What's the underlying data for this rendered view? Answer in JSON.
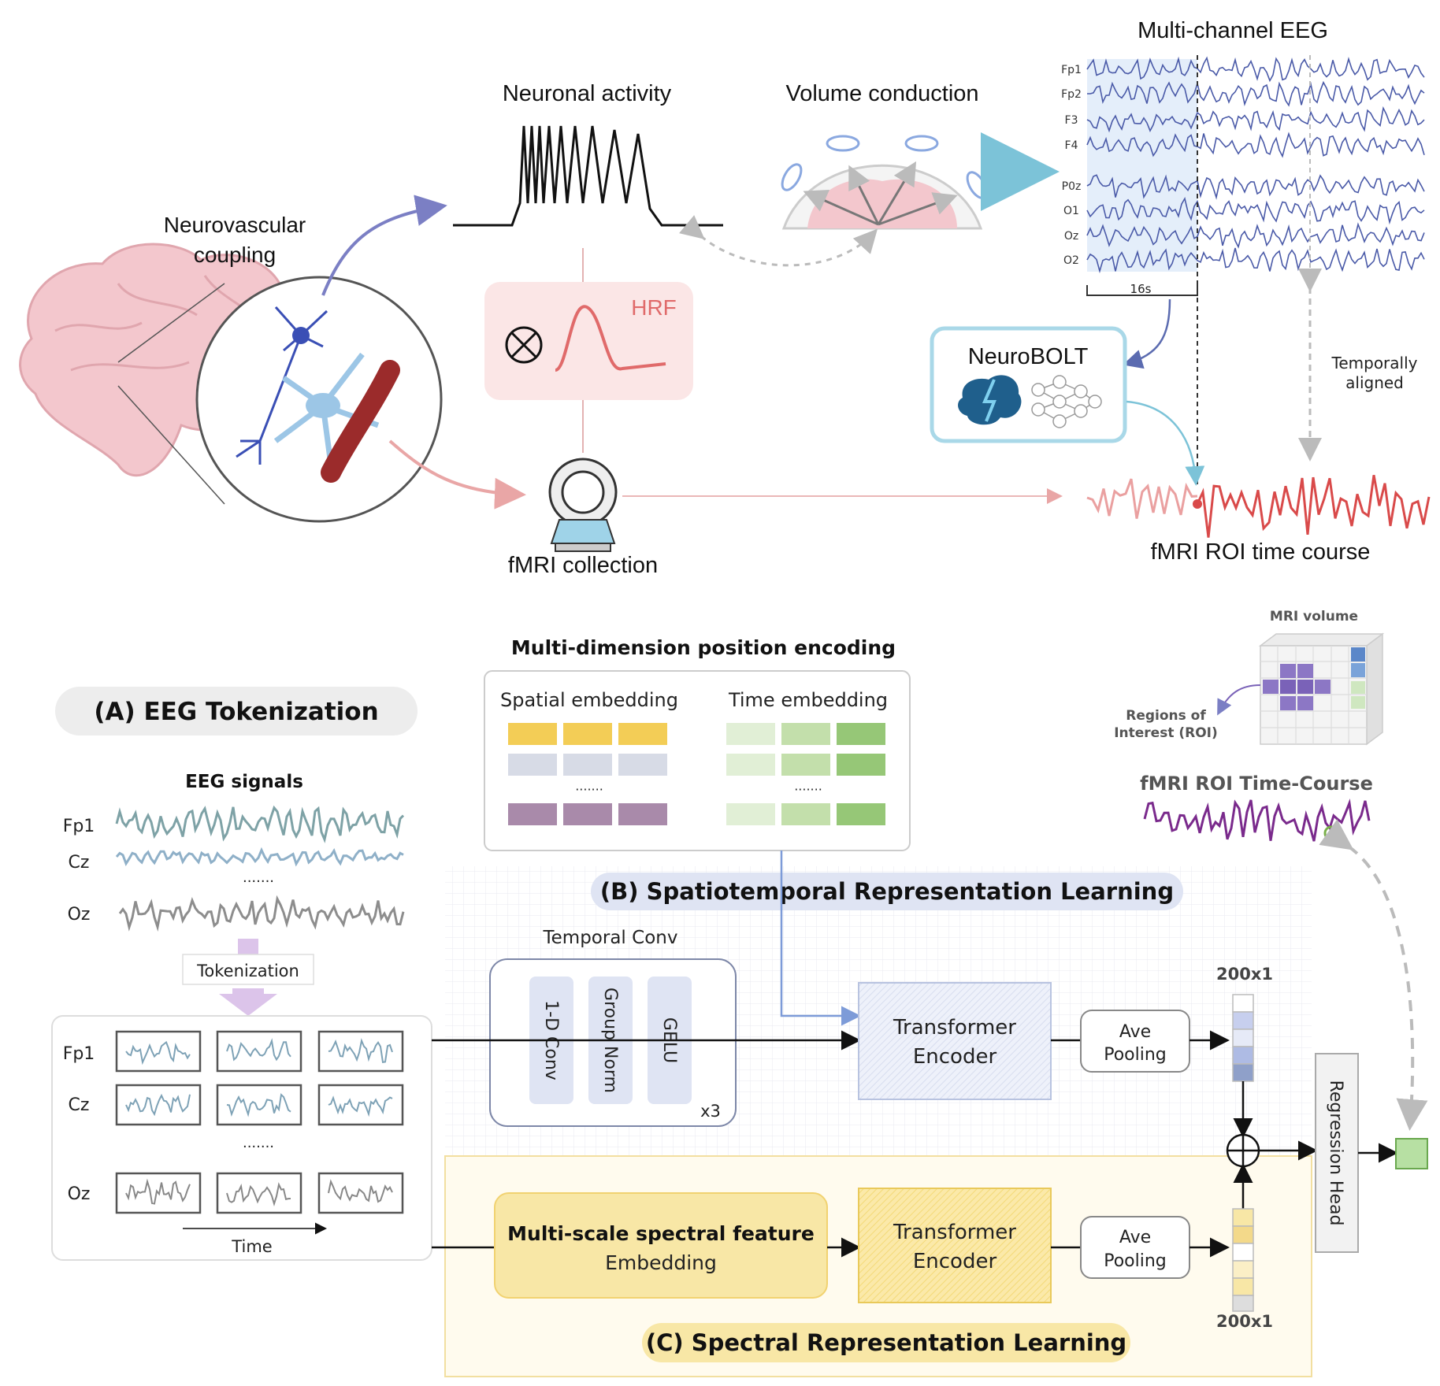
{
  "top": {
    "neuronal_activity": "Neuronal activity",
    "volume_conduction": "Volume conduction",
    "multichannel_eeg": "Multi-channel EEG",
    "neurovascular_coupling": [
      "Neurovascular",
      "coupling"
    ],
    "hrf": "HRF",
    "fmri_collection": "fMRI collection",
    "neurobolt": "NeuroBOLT",
    "temporally_aligned": [
      "Temporally",
      "aligned"
    ],
    "fmri_roi_time_course": "fMRI ROI time course",
    "window_label": "16s",
    "eeg_channels": [
      "Fp1",
      "Fp2",
      "F3",
      "F4",
      "P0z",
      "O1",
      "Oz",
      "O2"
    ]
  },
  "position_encoding": {
    "title": "Multi-dimension position encoding",
    "spatial": "Spatial embedding",
    "time": "Time embedding",
    "dots": "·······"
  },
  "tokenization": {
    "title": "(A) EEG Tokenization",
    "signals_title": "EEG signals",
    "channels": [
      "Fp1",
      "Cz",
      "Oz"
    ],
    "dots": "·······",
    "step": "Tokenization",
    "time_label": "Time"
  },
  "mri": {
    "volume": "MRI volume",
    "roi": [
      "Regions of",
      "Interest (ROI)"
    ],
    "roi_time_course": "fMRI ROI Time-Course"
  },
  "spatiotemporal": {
    "title": "(B) Spatiotemporal Representation Learning",
    "temporal_conv": "Temporal Conv",
    "conv_items": [
      "1-D Conv",
      "Group Norm",
      "GELU"
    ],
    "repeat": "x3",
    "encoder": [
      "Transformer",
      "Encoder"
    ],
    "pooling": [
      "Ave",
      "Pooling"
    ],
    "dim": "200x1"
  },
  "spectral": {
    "title": "(C) Spectral Representation Learning",
    "embedding": [
      "Multi-scale spectral feature",
      "Embedding"
    ],
    "encoder": [
      "Transformer",
      "Encoder"
    ],
    "pooling": [
      "Ave",
      "Pooling"
    ],
    "dim": "200x1"
  },
  "regression_head": "Regression Head",
  "colors": {
    "eeg_blue": "#4a5aa8",
    "hrf_red": "#e06a6a",
    "fmri_red": "#d94a4a",
    "roi_purple": "#7a2a8c",
    "spectral_yellow": "#f8e7a6",
    "spatio_blue": "#dfe4f3"
  }
}
